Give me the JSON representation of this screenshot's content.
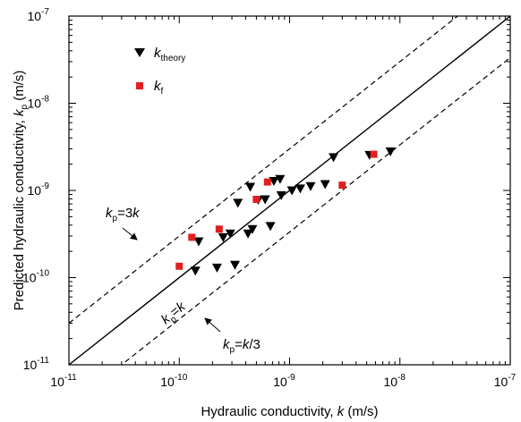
{
  "chart_data": {
    "type": "scatter",
    "xlabel": {
      "pre": "Hydraulic conductivity, ",
      "var": "k",
      "post": " (m/s)"
    },
    "ylabel": {
      "pre": "Predicted hydraulic conductivity, ",
      "var": "k",
      "sub": "p",
      "post": " (m/s)"
    },
    "x_scale": "log",
    "y_scale": "log",
    "xlim": [
      1e-11,
      1e-07
    ],
    "ylim": [
      1e-11,
      1e-07
    ],
    "grid": false,
    "legend_position": "top-left",
    "x_ticks": [
      {
        "value": 1e-11,
        "base": "10",
        "exp": "-11"
      },
      {
        "value": 1e-10,
        "base": "10",
        "exp": "-10"
      },
      {
        "value": 1e-09,
        "base": "10",
        "exp": "-9"
      },
      {
        "value": 1e-08,
        "base": "10",
        "exp": "-8"
      },
      {
        "value": 1e-07,
        "base": "10",
        "exp": "-7"
      }
    ],
    "y_ticks": [
      {
        "value": 1e-11,
        "base": "10",
        "exp": "-11"
      },
      {
        "value": 1e-10,
        "base": "10",
        "exp": "-10"
      },
      {
        "value": 1e-09,
        "base": "10",
        "exp": "-9"
      },
      {
        "value": 1e-08,
        "base": "10",
        "exp": "-8"
      },
      {
        "value": 1e-07,
        "base": "10",
        "exp": "-7"
      }
    ],
    "series": [
      {
        "name": {
          "var": "k",
          "sub": "theory"
        },
        "marker": "triangle-down",
        "color": "#000000",
        "points": [
          [
            1.4e-10,
            1.2e-10
          ],
          [
            1.5e-10,
            2.6e-10
          ],
          [
            2.2e-10,
            1.3e-10
          ],
          [
            2.5e-10,
            2.9e-10
          ],
          [
            2.9e-10,
            3.2e-10
          ],
          [
            3.2e-10,
            1.4e-10
          ],
          [
            3.4e-10,
            7.2e-10
          ],
          [
            4.2e-10,
            3.2e-10
          ],
          [
            4.4e-10,
            1.1e-09
          ],
          [
            4.6e-10,
            3.6e-10
          ],
          [
            5.2e-10,
            7.8e-10
          ],
          [
            6e-10,
            7.9e-10
          ],
          [
            6.7e-10,
            3.9e-10
          ],
          [
            7.2e-10,
            1.28e-09
          ],
          [
            8.2e-10,
            1.35e-09
          ],
          [
            8.4e-10,
            8.8e-10
          ],
          [
            1.05e-09,
            1e-09
          ],
          [
            1.25e-09,
            1.05e-09
          ],
          [
            1.55e-09,
            1.12e-09
          ],
          [
            2.1e-09,
            1.18e-09
          ],
          [
            2.5e-09,
            2.4e-09
          ],
          [
            5.3e-09,
            2.55e-09
          ],
          [
            8.2e-09,
            2.8e-09
          ]
        ]
      },
      {
        "name": {
          "var": "k",
          "sub": "f"
        },
        "marker": "square",
        "color": "#e02020",
        "points": [
          [
            1e-10,
            1.35e-10
          ],
          [
            1.3e-10,
            2.9e-10
          ],
          [
            2.3e-10,
            3.6e-10
          ],
          [
            5e-10,
            7.9e-10
          ],
          [
            6.3e-10,
            1.25e-09
          ],
          [
            3e-09,
            1.15e-09
          ],
          [
            5.8e-09,
            2.6e-09
          ]
        ]
      }
    ],
    "reference_lines": [
      {
        "factor": 1,
        "style": "solid",
        "label": {
          "var1": "k",
          "sub": "p",
          "eq": "=",
          "var2": "k",
          "tail": ""
        }
      },
      {
        "factor": 3,
        "style": "dashed",
        "label": {
          "var1": "k",
          "sub": "p",
          "eq": "=3",
          "var2": "k",
          "tail": ""
        }
      },
      {
        "factor": 0.3333333333,
        "style": "dashed",
        "label": {
          "var1": "k",
          "sub": "p",
          "eq": "=",
          "var2": "k",
          "tail": "/3"
        }
      }
    ]
  }
}
